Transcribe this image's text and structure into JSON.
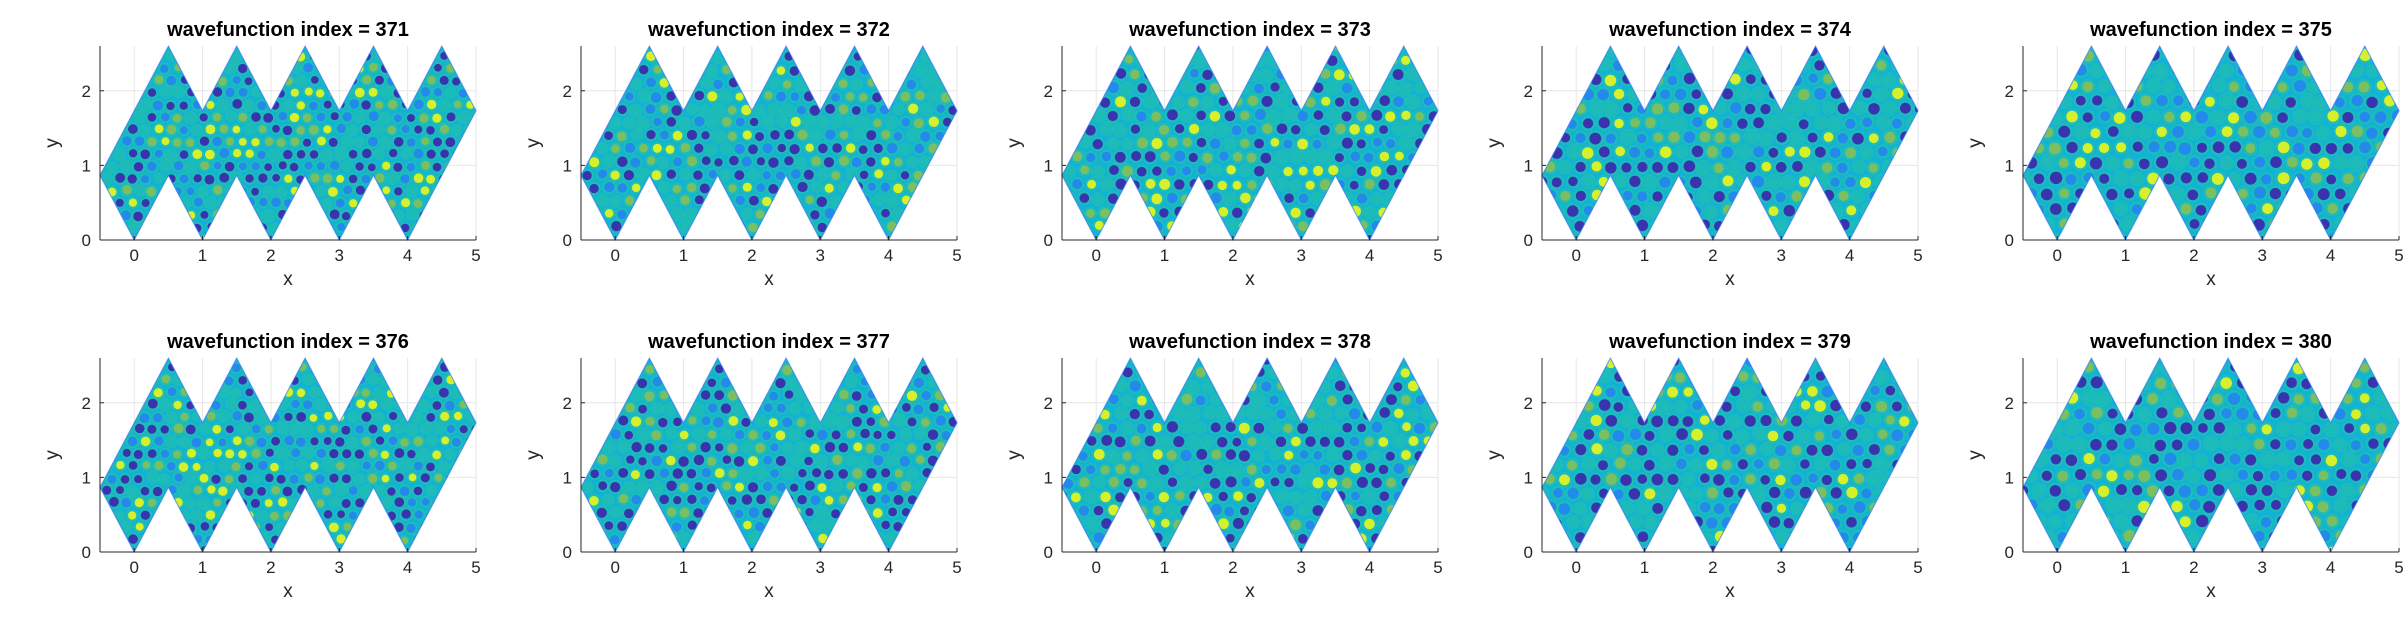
{
  "figure": {
    "panels": [
      {
        "title": "wavefunction index = 371",
        "seed": 371
      },
      {
        "title": "wavefunction index = 372",
        "seed": 372
      },
      {
        "title": "wavefunction index = 373",
        "seed": 373
      },
      {
        "title": "wavefunction index = 374",
        "seed": 374
      },
      {
        "title": "wavefunction index = 375",
        "seed": 375
      },
      {
        "title": "wavefunction index = 376",
        "seed": 376
      },
      {
        "title": "wavefunction index = 377",
        "seed": 377
      },
      {
        "title": "wavefunction index = 378",
        "seed": 378
      },
      {
        "title": "wavefunction index = 379",
        "seed": 379
      },
      {
        "title": "wavefunction index = 380",
        "seed": 380
      }
    ]
  },
  "chart_data": {
    "type": "heatmap",
    "xlabel": "x",
    "ylabel": "y",
    "xlim": [
      -0.5,
      5
    ],
    "ylim": [
      0,
      2.6
    ],
    "xticks": [
      "0",
      "1",
      "2",
      "3",
      "4",
      "5"
    ],
    "yticks": [
      "0",
      "1",
      "2"
    ],
    "grid": true,
    "layout_grid": "2 rows x 5 columns",
    "colormap": [
      "#3e26a8",
      "#2f6ff9",
      "#12b2d7",
      "#27c69a",
      "#a6c431",
      "#f7cc2e",
      "#f9fb0e"
    ],
    "domain_polygon": [
      [
        -0.5,
        0.866
      ],
      [
        0,
        0
      ],
      [
        0.5,
        0.866
      ],
      [
        1,
        0
      ],
      [
        1.5,
        0.866
      ],
      [
        2,
        0
      ],
      [
        2.5,
        0.866
      ],
      [
        3,
        0
      ],
      [
        3.5,
        0.866
      ],
      [
        4,
        0
      ],
      [
        5,
        1.732
      ],
      [
        4.5,
        2.598
      ],
      [
        4,
        1.732
      ],
      [
        3.5,
        2.598
      ],
      [
        3,
        1.732
      ],
      [
        2.5,
        2.598
      ],
      [
        2,
        1.732
      ],
      [
        1.5,
        2.598
      ],
      [
        1,
        1.732
      ],
      [
        0.5,
        2.598
      ]
    ],
    "panel_titles": [
      "wavefunction index = 371",
      "wavefunction index = 372",
      "wavefunction index = 373",
      "wavefunction index = 374",
      "wavefunction index = 375",
      "wavefunction index = 376",
      "wavefunction index = 377",
      "wavefunction index = 378",
      "wavefunction index = 379",
      "wavefunction index = 380"
    ]
  }
}
